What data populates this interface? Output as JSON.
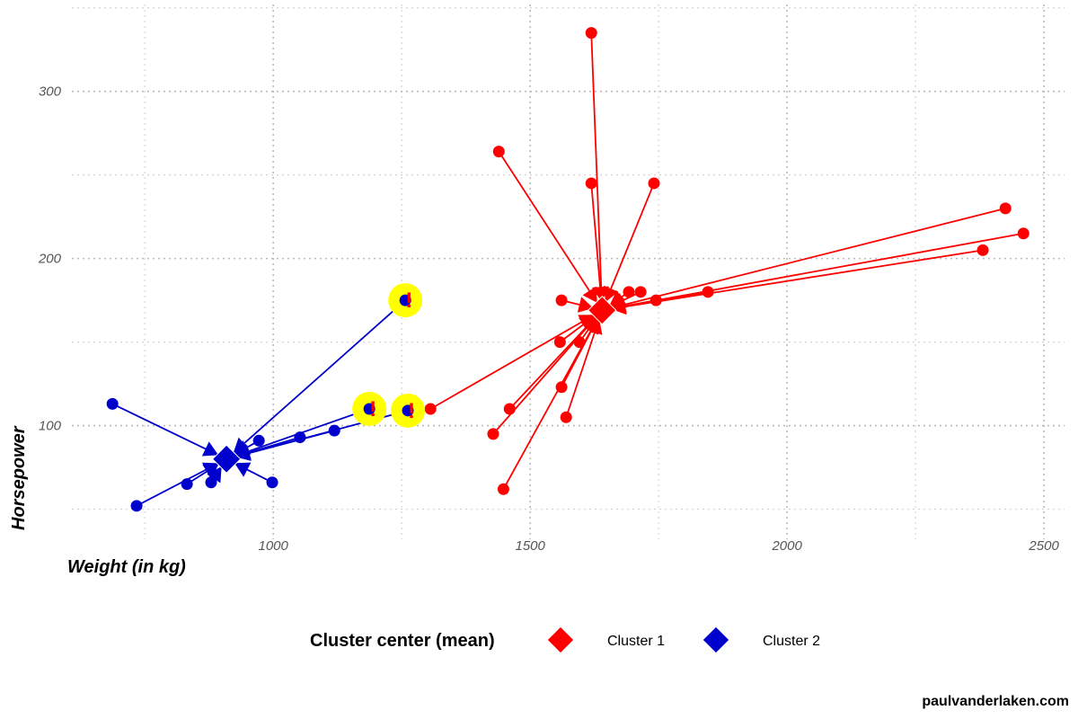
{
  "chart_data": {
    "type": "scatter",
    "title": "",
    "xlabel": "Weight (in kg)",
    "ylabel": "Horsepower",
    "xlim": [
      608,
      2540
    ],
    "ylim": [
      32,
      352
    ],
    "xticks": [
      1000,
      1500,
      2000,
      2500
    ],
    "yticks": [
      100,
      200,
      300
    ],
    "grid": true,
    "legend": {
      "title": "Cluster center (mean)",
      "position": "bottom",
      "entries": [
        "Cluster 1",
        "Cluster 2"
      ]
    },
    "colors": {
      "Cluster 1": "#ff0000",
      "Cluster 2": "#0000cc",
      "highlight": "#ffff00"
    },
    "series": [
      {
        "name": "Cluster 1",
        "center": [
          1640,
          169
        ],
        "points": [
          [
            1306,
            110
          ],
          [
            1619,
            335
          ],
          [
            1439,
            264
          ],
          [
            1619,
            245
          ],
          [
            1741,
            245
          ],
          [
            2425,
            230
          ],
          [
            2460,
            215
          ],
          [
            2381,
            205
          ],
          [
            1846,
            180
          ],
          [
            1745,
            175
          ],
          [
            1692,
            180
          ],
          [
            1715,
            180
          ],
          [
            1561,
            175
          ],
          [
            1558,
            150
          ],
          [
            1596,
            150
          ],
          [
            1561,
            123
          ],
          [
            1460,
            110
          ],
          [
            1428,
            95
          ],
          [
            1570,
            105
          ],
          [
            1448,
            62
          ]
        ]
      },
      {
        "name": "Cluster 2",
        "center": [
          909,
          80
        ],
        "points": [
          [
            687,
            113
          ],
          [
            734,
            52
          ],
          [
            832,
            65
          ],
          [
            879,
            66
          ],
          [
            972,
            91
          ],
          [
            998,
            66
          ],
          [
            1052,
            93
          ],
          [
            1119,
            97
          ],
          [
            1187,
            110
          ],
          [
            1262,
            109
          ],
          [
            1257,
            175
          ]
        ],
        "flagged": [
          [
            1187,
            110
          ],
          [
            1262,
            109
          ],
          [
            1257,
            175
          ]
        ]
      }
    ],
    "flag_marker": "!"
  },
  "caption": "paulvanderlaken.com"
}
